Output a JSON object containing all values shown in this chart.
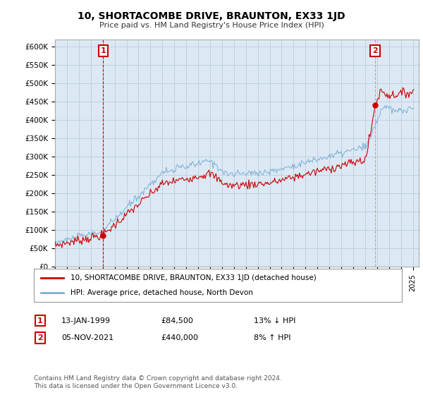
{
  "title": "10, SHORTACOMBE DRIVE, BRAUNTON, EX33 1JD",
  "subtitle": "Price paid vs. HM Land Registry's House Price Index (HPI)",
  "legend_line1": "10, SHORTACOMBE DRIVE, BRAUNTON, EX33 1JD (detached house)",
  "legend_line2": "HPI: Average price, detached house, North Devon",
  "transaction1_date": "13-JAN-1999",
  "transaction1_price": "£84,500",
  "transaction1_hpi": "13% ↓ HPI",
  "transaction2_date": "05-NOV-2021",
  "transaction2_price": "£440,000",
  "transaction2_hpi": "8% ↑ HPI",
  "copyright": "Contains HM Land Registry data © Crown copyright and database right 2024.\nThis data is licensed under the Open Government Licence v3.0.",
  "xmin": 1995.0,
  "xmax": 2025.5,
  "ymin": 0,
  "ymax": 620000,
  "yticks": [
    0,
    50000,
    100000,
    150000,
    200000,
    250000,
    300000,
    350000,
    400000,
    450000,
    500000,
    550000,
    600000
  ],
  "ytick_labels": [
    "£0",
    "£50K",
    "£100K",
    "£150K",
    "£200K",
    "£250K",
    "£300K",
    "£350K",
    "£400K",
    "£450K",
    "£500K",
    "£550K",
    "£600K"
  ],
  "transaction1_x": 1999.04,
  "transaction1_y": 84500,
  "transaction2_x": 2021.84,
  "transaction2_y": 440000,
  "line_color_red": "#cc0000",
  "line_color_blue": "#7bafd4",
  "marker_box_color": "#cc0000",
  "vline1_color": "#cc0000",
  "vline2_color": "#aaaaaa",
  "chart_bg_color": "#dce9f5",
  "background_color": "#ffffff",
  "grid_color": "#c0d0e0"
}
